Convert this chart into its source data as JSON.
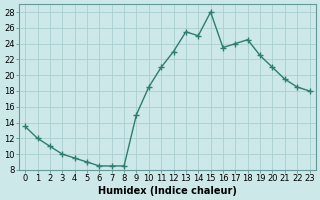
{
  "x": [
    0,
    1,
    2,
    3,
    4,
    5,
    6,
    7,
    8,
    9,
    10,
    11,
    12,
    13,
    14,
    15,
    16,
    17,
    18,
    19,
    20,
    21,
    22,
    23
  ],
  "y": [
    13.5,
    12.0,
    11.0,
    10.0,
    9.5,
    9.0,
    8.5,
    8.5,
    8.5,
    15.0,
    18.5,
    21.0,
    23.0,
    25.5,
    25.0,
    28.0,
    23.5,
    24.0,
    24.5,
    22.5,
    21.0,
    19.5,
    18.5,
    18.0
  ],
  "line_color": "#2e7d6e",
  "marker": "+",
  "bg_color": "#cce8e8",
  "grid_color": "#aacfcf",
  "xlabel": "Humidex (Indice chaleur)",
  "ylim": [
    8,
    29
  ],
  "xlim": [
    -0.5,
    23.5
  ],
  "yticks": [
    8,
    10,
    12,
    14,
    16,
    18,
    20,
    22,
    24,
    26,
    28
  ],
  "xtick_labels": [
    "0",
    "1",
    "2",
    "3",
    "4",
    "5",
    "6",
    "7",
    "8",
    "9",
    "10",
    "11",
    "12",
    "13",
    "14",
    "15",
    "16",
    "17",
    "18",
    "19",
    "20",
    "21",
    "22",
    "23"
  ],
  "xlabel_fontsize": 7,
  "tick_fontsize": 6,
  "line_width": 1.0,
  "marker_size": 4
}
